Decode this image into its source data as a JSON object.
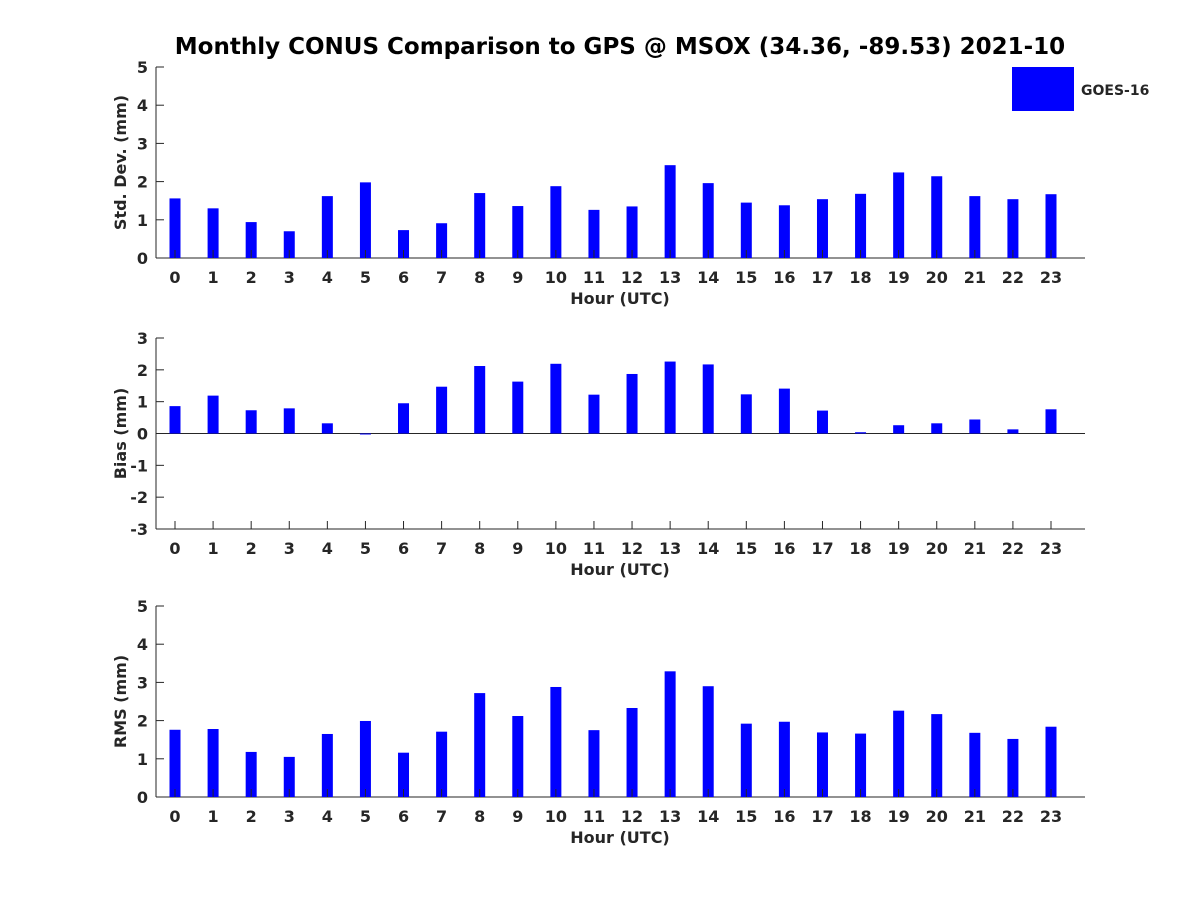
{
  "title": "Monthly CONUS Comparison to GPS @ MSOX (34.36, -89.53) 2021-10",
  "legend": {
    "label": "GOES-16",
    "color": "#0000ff",
    "placement": "top-right"
  },
  "chart_data": [
    {
      "type": "bar",
      "xlabel": "Hour (UTC)",
      "ylabel": "Std. Dev. (mm)",
      "ylim": [
        0,
        5
      ],
      "yticks": [
        "0",
        "1",
        "2",
        "3",
        "4",
        "5"
      ],
      "categories": [
        "0",
        "1",
        "2",
        "3",
        "4",
        "5",
        "6",
        "7",
        "8",
        "9",
        "10",
        "11",
        "12",
        "13",
        "14",
        "15",
        "16",
        "17",
        "18",
        "19",
        "20",
        "21",
        "22",
        "23"
      ],
      "series": [
        {
          "name": "GOES-16",
          "color": "#0000ff",
          "values": [
            1.56,
            1.3,
            0.94,
            0.7,
            1.62,
            1.98,
            0.73,
            0.91,
            1.7,
            1.36,
            1.88,
            1.26,
            1.35,
            2.43,
            1.96,
            1.45,
            1.38,
            1.54,
            1.68,
            2.24,
            2.14,
            1.62,
            1.54,
            1.67
          ]
        }
      ]
    },
    {
      "type": "bar",
      "xlabel": "Hour (UTC)",
      "ylabel": "Bias (mm)",
      "ylim": [
        -3,
        3
      ],
      "yticks": [
        "-3",
        "-2",
        "-1",
        "0",
        "1",
        "2",
        "3"
      ],
      "categories": [
        "0",
        "1",
        "2",
        "3",
        "4",
        "5",
        "6",
        "7",
        "8",
        "9",
        "10",
        "11",
        "12",
        "13",
        "14",
        "15",
        "16",
        "17",
        "18",
        "19",
        "20",
        "21",
        "22",
        "23"
      ],
      "series": [
        {
          "name": "GOES-16",
          "color": "#0000ff",
          "values": [
            0.86,
            1.19,
            0.73,
            0.79,
            0.32,
            0.0,
            0.95,
            1.47,
            2.12,
            1.63,
            2.19,
            1.22,
            1.87,
            2.26,
            2.17,
            1.23,
            1.41,
            0.72,
            0.04,
            0.26,
            0.32,
            0.44,
            0.13,
            0.76
          ]
        }
      ]
    },
    {
      "type": "bar",
      "xlabel": "Hour (UTC)",
      "ylabel": "RMS (mm)",
      "ylim": [
        0,
        5
      ],
      "yticks": [
        "0",
        "1",
        "2",
        "3",
        "4",
        "5"
      ],
      "categories": [
        "0",
        "1",
        "2",
        "3",
        "4",
        "5",
        "6",
        "7",
        "8",
        "9",
        "10",
        "11",
        "12",
        "13",
        "14",
        "15",
        "16",
        "17",
        "18",
        "19",
        "20",
        "21",
        "22",
        "23"
      ],
      "series": [
        {
          "name": "GOES-16",
          "color": "#0000ff",
          "values": [
            1.76,
            1.78,
            1.18,
            1.05,
            1.65,
            1.99,
            1.16,
            1.71,
            2.72,
            2.12,
            2.88,
            1.75,
            2.33,
            3.29,
            2.9,
            1.92,
            1.97,
            1.69,
            1.66,
            2.26,
            2.17,
            1.68,
            1.52,
            1.84
          ]
        }
      ]
    }
  ]
}
